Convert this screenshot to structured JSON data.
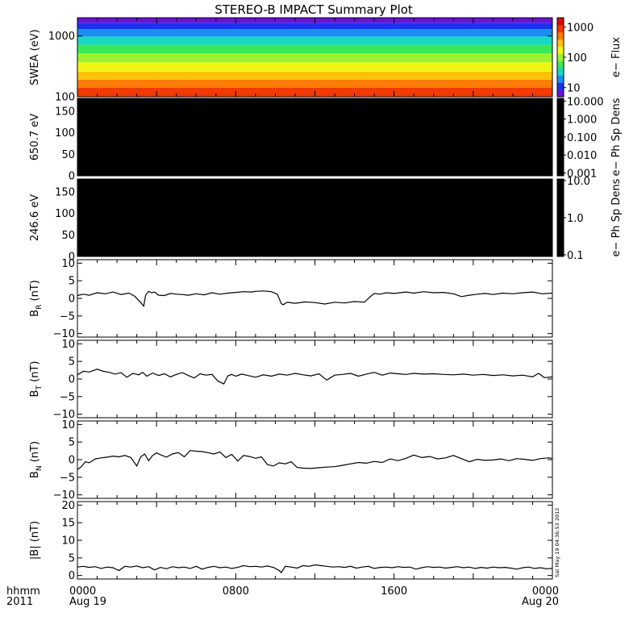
{
  "title": "STEREO-B IMPACT Summary Plot",
  "timestamp": "Sat May 19 04:36:53 2012",
  "bottom_axis": {
    "row1": [
      "hhmm",
      "0000",
      "0800",
      "1600",
      "0000"
    ],
    "row2": [
      "2011",
      "Aug 19",
      "",
      "",
      "Aug 20"
    ],
    "hours": [
      0,
      8,
      16,
      24
    ]
  },
  "colors": {
    "line": "#000000",
    "axes": "#000000",
    "fill_black": "#000000"
  },
  "chart_data": [
    {
      "type": "heatmap",
      "ylabel": "SWEA (eV)",
      "y_scale": "log",
      "yticks": [
        "100",
        "1000"
      ],
      "ytick_values": [
        100,
        1000
      ],
      "ylim": [
        100,
        2000
      ],
      "colorbar": {
        "label": "e− Flux",
        "scale": "log",
        "ticks": [
          "10",
          "100",
          "1000"
        ],
        "tick_values": [
          10,
          100,
          1000
        ],
        "range": [
          5,
          2000
        ]
      },
      "energy_bands": [
        {
          "ev_low": 100,
          "ev_high": 140,
          "color": "#f23a05"
        },
        {
          "ev_low": 140,
          "ev_high": 190,
          "color": "#fb7c06"
        },
        {
          "ev_low": 190,
          "ev_high": 260,
          "color": "#fcc20a"
        },
        {
          "ev_low": 260,
          "ev_high": 370,
          "color": "#f0f614"
        },
        {
          "ev_low": 370,
          "ev_high": 520,
          "color": "#9cf22e"
        },
        {
          "ev_low": 520,
          "ev_high": 720,
          "color": "#3be85b"
        },
        {
          "ev_low": 720,
          "ev_high": 980,
          "color": "#18d7c6"
        },
        {
          "ev_low": 980,
          "ev_high": 1300,
          "color": "#1a8ef0"
        },
        {
          "ev_low": 1300,
          "ev_high": 1650,
          "color": "#1a35ea"
        },
        {
          "ev_low": 1650,
          "ev_high": 2000,
          "color": "#6a12d8"
        }
      ]
    },
    {
      "type": "heatmap",
      "ylabel": "650.7 eV",
      "yticks": [
        "0",
        "50",
        "100",
        "150"
      ],
      "ytick_values": [
        0,
        50,
        100,
        150
      ],
      "ylim": [
        0,
        180
      ],
      "colorbar": {
        "label": "e− Ph Sp Dens",
        "scale": "log",
        "ticks": [
          "10.000",
          "1.000",
          "0.100",
          "0.010",
          "0.001"
        ],
        "tick_values": [
          10,
          1,
          0.1,
          0.01,
          0.001
        ],
        "range": [
          0.0007,
          14
        ]
      }
    },
    {
      "type": "heatmap",
      "ylabel": "246.6 eV",
      "yticks": [
        "0",
        "50",
        "100",
        "150"
      ],
      "ytick_values": [
        0,
        50,
        100,
        150
      ],
      "ylim": [
        0,
        180
      ],
      "colorbar": {
        "label": "e− Ph Sp Dens",
        "scale": "log",
        "ticks": [
          "10.0",
          "1.0",
          "0.1"
        ],
        "tick_values": [
          10,
          1,
          0.1
        ],
        "range": [
          0.09,
          11
        ]
      }
    },
    {
      "type": "line",
      "ylabel": "B",
      "ylabel_sub": "R",
      "ylabel_unit": "(nT)",
      "yticks": [
        "−10",
        "−5",
        "0",
        "5",
        "10"
      ],
      "ytick_values": [
        -10,
        -5,
        0,
        5,
        10
      ],
      "ylim": [
        -11,
        11
      ],
      "x": [
        0,
        0.3,
        0.6,
        1,
        1.4,
        1.8,
        2.2,
        2.6,
        2.9,
        3.05,
        3.2,
        3.35,
        3.45,
        3.6,
        3.75,
        3.9,
        4.1,
        4.4,
        4.7,
        5,
        5.3,
        5.6,
        6,
        6.4,
        6.8,
        7.2,
        7.6,
        8,
        8.4,
        8.8,
        9,
        9.4,
        9.8,
        10.1,
        10.3,
        10.4,
        10.6,
        11,
        11.5,
        12,
        12.5,
        13,
        13.5,
        14,
        14.5,
        14.8,
        15,
        15.3,
        15.6,
        16,
        16.6,
        17,
        17.5,
        18,
        18.5,
        19,
        19.4,
        19.8,
        20.2,
        20.6,
        21,
        21.5,
        22,
        22.5,
        23,
        23.5,
        24
      ],
      "y": [
        0.8,
        1.2,
        0.9,
        1.6,
        1.3,
        1.8,
        1.1,
        1.5,
        0.6,
        -0.3,
        -1.2,
        -2.2,
        1.0,
        2.0,
        1.6,
        1.8,
        0.9,
        0.8,
        1.4,
        1.2,
        1.1,
        0.9,
        1.3,
        1.0,
        1.6,
        1.2,
        1.5,
        1.7,
        1.9,
        1.8,
        2.0,
        2.1,
        1.9,
        1.2,
        -1.5,
        -1.8,
        -1.1,
        -1.4,
        -1.0,
        -1.2,
        -1.6,
        -1.1,
        -1.3,
        -0.9,
        -1.1,
        0.5,
        1.4,
        1.2,
        1.6,
        1.4,
        1.8,
        1.5,
        1.9,
        1.6,
        1.7,
        1.3,
        0.5,
        0.9,
        1.2,
        1.4,
        1.1,
        1.5,
        1.3,
        1.6,
        1.8,
        1.3,
        1.5
      ]
    },
    {
      "type": "line",
      "ylabel": "B",
      "ylabel_sub": "T",
      "ylabel_unit": "(nT)",
      "yticks": [
        "−10",
        "−5",
        "0",
        "5",
        "10"
      ],
      "ytick_values": [
        -10,
        -5,
        0,
        5,
        10
      ],
      "ylim": [
        -11,
        11
      ],
      "x": [
        0,
        0.3,
        0.6,
        1,
        1.3,
        1.6,
        1.9,
        2.2,
        2.5,
        2.8,
        3.1,
        3.3,
        3.5,
        3.8,
        4.1,
        4.4,
        4.7,
        5,
        5.3,
        5.6,
        5.9,
        6.2,
        6.5,
        6.8,
        7.1,
        7.4,
        7.6,
        7.8,
        8,
        8.3,
        8.6,
        9,
        9.4,
        9.8,
        10.2,
        10.6,
        11,
        11.4,
        11.8,
        12.2,
        12.6,
        13,
        13.4,
        13.8,
        14.2,
        14.6,
        15,
        15.4,
        15.8,
        16.2,
        16.6,
        17,
        17.5,
        18,
        18.5,
        19,
        19.5,
        20,
        20.5,
        21,
        21.5,
        22,
        22.5,
        23,
        23.3,
        23.6,
        24
      ],
      "y": [
        1.2,
        2.2,
        2.0,
        2.8,
        2.2,
        1.9,
        1.4,
        1.8,
        0.5,
        1.6,
        1.2,
        1.9,
        0.8,
        1.7,
        1.0,
        1.5,
        0.6,
        1.3,
        1.8,
        1.0,
        0.3,
        1.5,
        1.1,
        1.3,
        -0.6,
        -1.4,
        0.9,
        1.3,
        0.8,
        1.4,
        1.0,
        0.5,
        1.2,
        0.8,
        1.4,
        1.1,
        1.6,
        1.2,
        0.9,
        1.5,
        -0.3,
        1.1,
        1.3,
        1.6,
        0.8,
        1.4,
        1.9,
        1.1,
        1.7,
        1.5,
        1.3,
        1.6,
        1.4,
        1.5,
        1.3,
        1.2,
        1.4,
        1.1,
        1.3,
        1.0,
        1.2,
        0.9,
        1.1,
        0.6,
        1.6,
        0.4,
        0.6
      ]
    },
    {
      "type": "line",
      "ylabel": "B",
      "ylabel_sub": "N",
      "ylabel_unit": "(nT)",
      "yticks": [
        "−10",
        "−5",
        "0",
        "5",
        "10"
      ],
      "ytick_values": [
        -10,
        -5,
        0,
        5,
        10
      ],
      "ylim": [
        -11,
        11
      ],
      "x": [
        0,
        0.2,
        0.4,
        0.6,
        0.9,
        1.2,
        1.5,
        1.8,
        2.1,
        2.4,
        2.7,
        3,
        3.2,
        3.4,
        3.6,
        3.8,
        4,
        4.2,
        4.5,
        4.8,
        5.1,
        5.4,
        5.7,
        6,
        6.3,
        6.6,
        6.9,
        7.2,
        7.5,
        7.8,
        8.1,
        8.4,
        8.7,
        9,
        9.3,
        9.6,
        9.9,
        10.2,
        10.5,
        10.8,
        11.1,
        11.4,
        11.8,
        12.2,
        12.6,
        13,
        13.4,
        13.8,
        14.2,
        14.6,
        15,
        15.4,
        15.8,
        16.2,
        16.6,
        17,
        17.4,
        17.8,
        18.2,
        18.6,
        19,
        19.4,
        19.8,
        20.2,
        20.6,
        21,
        21.4,
        21.8,
        22.2,
        22.6,
        23,
        23.4,
        23.8,
        24
      ],
      "y": [
        -2.8,
        -2.0,
        -0.6,
        -0.9,
        0.2,
        0.5,
        0.7,
        1.0,
        0.8,
        1.2,
        0.6,
        -1.8,
        0.8,
        1.6,
        -0.3,
        1.2,
        1.9,
        1.4,
        0.7,
        1.6,
        2.0,
        0.8,
        2.6,
        2.4,
        2.3,
        2.0,
        1.6,
        2.2,
        0.6,
        1.5,
        -0.4,
        1.2,
        0.9,
        0.4,
        0.8,
        -1.4,
        -1.8,
        -0.9,
        -1.2,
        -0.6,
        -2.2,
        -2.4,
        -2.5,
        -2.3,
        -2.1,
        -2.0,
        -1.6,
        -1.2,
        -0.8,
        -1.0,
        -0.5,
        -0.8,
        0.2,
        -0.3,
        0.4,
        1.3,
        0.6,
        0.9,
        0.2,
        0.5,
        1.2,
        0.3,
        -0.6,
        0.1,
        -0.2,
        -0.1,
        0.2,
        -0.3,
        0.3,
        0.1,
        -0.2,
        0.3,
        0.5,
        0.4
      ]
    },
    {
      "type": "line",
      "ylabel": "|B|",
      "ylabel_unit": "(nT)",
      "yticks": [
        "0",
        "5",
        "10",
        "15",
        "20"
      ],
      "ytick_values": [
        0,
        5,
        10,
        15,
        20
      ],
      "ylim": [
        -1,
        21
      ],
      "x": [
        0,
        0.3,
        0.6,
        0.9,
        1.2,
        1.5,
        1.8,
        2.1,
        2.4,
        2.7,
        3,
        3.3,
        3.6,
        3.9,
        4.2,
        4.5,
        4.8,
        5.1,
        5.4,
        5.7,
        6,
        6.3,
        6.6,
        6.9,
        7.2,
        7.5,
        7.8,
        8.1,
        8.4,
        8.7,
        9,
        9.3,
        9.6,
        9.9,
        10.2,
        10.3,
        10.5,
        10.8,
        11.1,
        11.4,
        11.7,
        12,
        12.3,
        12.6,
        12.9,
        13.2,
        13.5,
        13.8,
        14.1,
        14.4,
        14.7,
        15,
        15.3,
        15.6,
        15.9,
        16.2,
        16.5,
        16.8,
        17.1,
        17.4,
        17.7,
        18,
        18.3,
        18.6,
        18.9,
        19.2,
        19.5,
        19.8,
        20.1,
        20.4,
        20.7,
        21,
        21.3,
        21.6,
        21.9,
        22.2,
        22.5,
        22.8,
        23.1,
        23.4,
        23.7,
        24
      ],
      "y": [
        2.4,
        2.6,
        2.3,
        2.5,
        2.0,
        2.4,
        2.2,
        1.4,
        2.6,
        2.4,
        2.7,
        2.2,
        2.5,
        1.6,
        2.3,
        1.9,
        2.5,
        2.2,
        2.4,
        2.0,
        2.6,
        1.8,
        2.3,
        2.6,
        2.2,
        2.4,
        2.0,
        2.3,
        2.8,
        2.5,
        2.6,
        2.4,
        2.7,
        2.3,
        1.4,
        0.8,
        2.6,
        2.4,
        2.1,
        2.8,
        2.6,
        3.0,
        2.8,
        2.6,
        2.4,
        2.5,
        2.3,
        2.6,
        2.1,
        2.4,
        2.6,
        2.0,
        2.3,
        2.4,
        2.2,
        2.5,
        2.3,
        2.4,
        1.8,
        2.2,
        2.5,
        2.3,
        2.4,
        2.1,
        2.3,
        2.5,
        2.2,
        2.4,
        2.0,
        2.3,
        2.1,
        2.4,
        2.2,
        2.3,
        2.1,
        1.8,
        2.2,
        2.4,
        2.0,
        2.2,
        1.9,
        2.0
      ]
    }
  ]
}
